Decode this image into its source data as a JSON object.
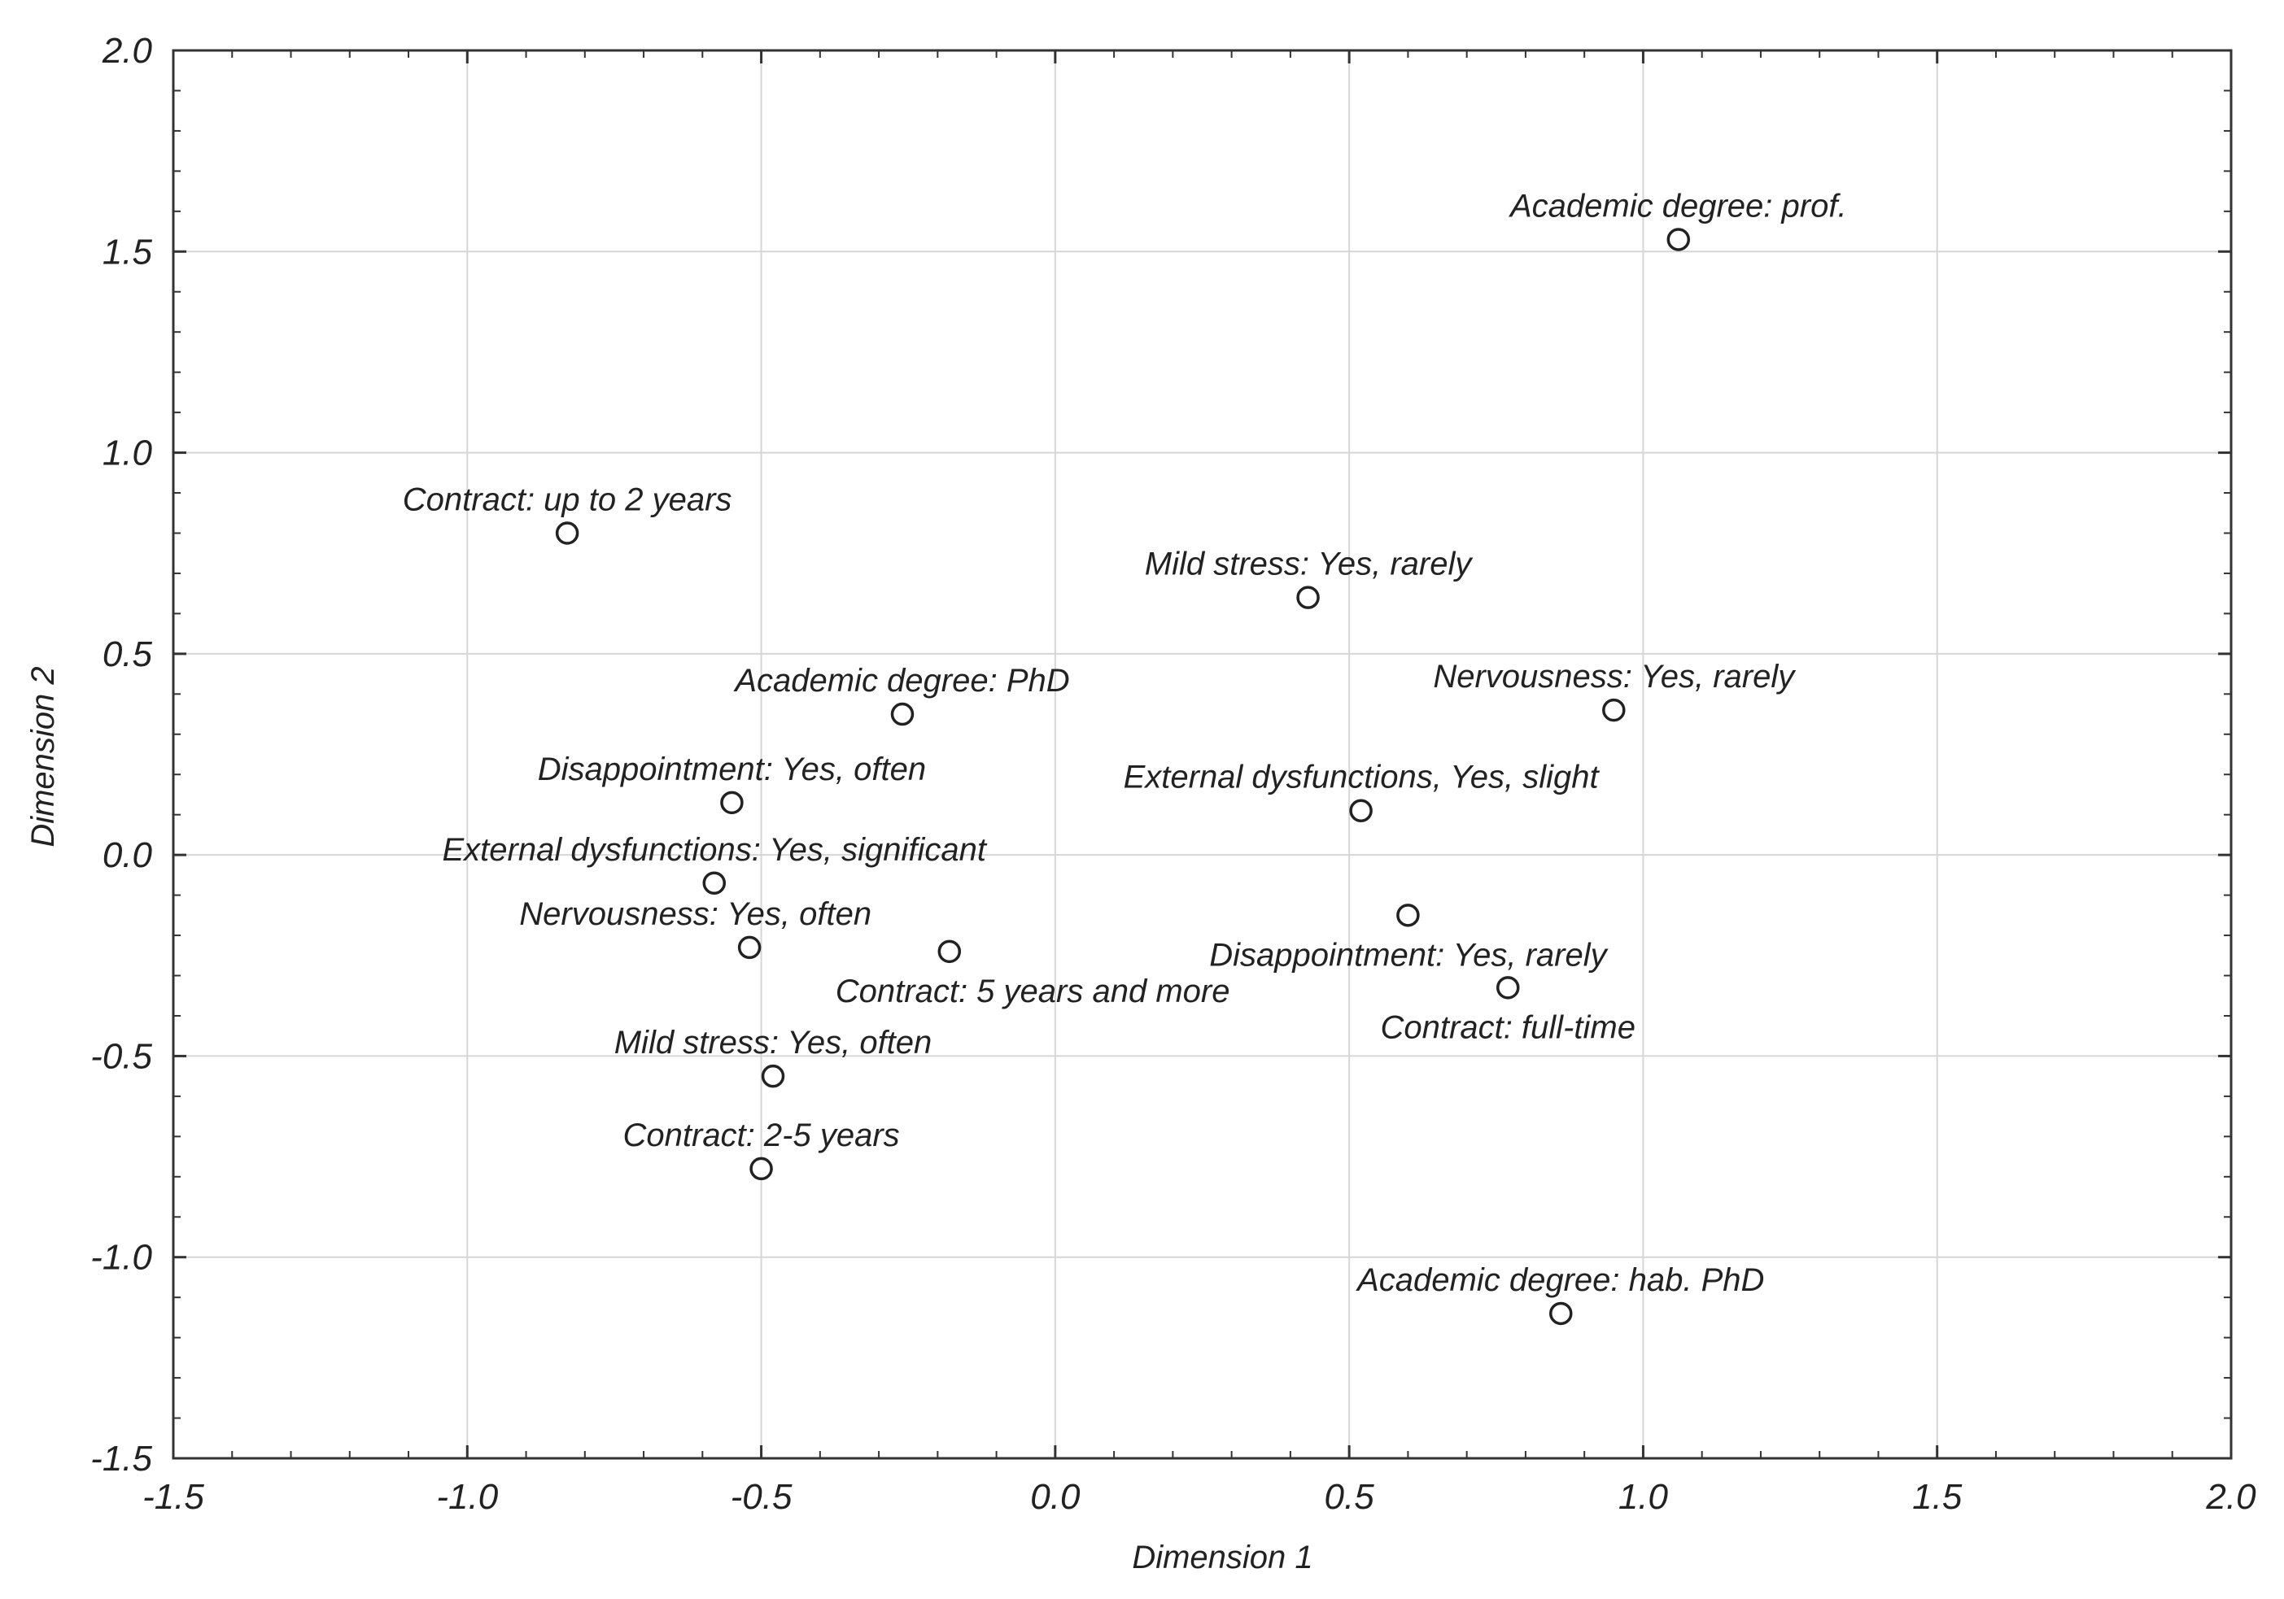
{
  "chart_data": {
    "type": "scatter",
    "title": "",
    "xlabel": "Dimension 1",
    "ylabel": "Dimension 2",
    "xlim": [
      -1.5,
      2.0
    ],
    "ylim": [
      -1.5,
      2.0
    ],
    "xticks": [
      "-1.5",
      "-1.0",
      "-0.5",
      "0.0",
      "0.5",
      "1.0",
      "1.5",
      "2.0"
    ],
    "yticks": [
      "2.0",
      "1.5",
      "1.0",
      "0.5",
      "0.0",
      "-0.5",
      "-1.0",
      "-1.5"
    ],
    "grid": true,
    "points": [
      {
        "label": "Academic degree: prof.",
        "x": 1.06,
        "y": 1.53,
        "label_anchor": "middle",
        "label_pos": "above"
      },
      {
        "label": "Contract: up to 2 years",
        "x": -0.83,
        "y": 0.8,
        "label_anchor": "middle",
        "label_pos": "above"
      },
      {
        "label": "Mild stress: Yes, rarely",
        "x": 0.43,
        "y": 0.64,
        "label_anchor": "middle",
        "label_pos": "above"
      },
      {
        "label": "Academic degree: PhD",
        "x": -0.26,
        "y": 0.35,
        "label_anchor": "middle",
        "label_pos": "above"
      },
      {
        "label": "Nervousness: Yes, rarely",
        "x": 0.95,
        "y": 0.36,
        "label_anchor": "middle",
        "label_pos": "above"
      },
      {
        "label": "Disappointment: Yes, often",
        "x": -0.55,
        "y": 0.13,
        "label_anchor": "middle",
        "label_pos": "above"
      },
      {
        "label": "External dysfunctions, Yes, slight",
        "x": 0.52,
        "y": 0.11,
        "label_anchor": "middle",
        "label_pos": "above"
      },
      {
        "label": "External dysfunctions: Yes, significant",
        "x": -0.58,
        "y": -0.07,
        "label_anchor": "middle",
        "label_pos": "above"
      },
      {
        "label": "Disappointment: Yes, rarely",
        "x": 0.6,
        "y": -0.15,
        "label_anchor": "middle",
        "label_pos": "below"
      },
      {
        "label": "Nervousness: Yes, often",
        "x": -0.52,
        "y": -0.23,
        "label_anchor": "end",
        "label_pos": "above"
      },
      {
        "label": "Contract: 5 years and more",
        "x": -0.18,
        "y": -0.24,
        "label_anchor": "start",
        "label_pos": "below"
      },
      {
        "label": "Contract: full-time",
        "x": 0.77,
        "y": -0.33,
        "label_anchor": "middle",
        "label_pos": "below"
      },
      {
        "label": "Mild stress: Yes, often",
        "x": -0.48,
        "y": -0.55,
        "label_anchor": "middle",
        "label_pos": "above"
      },
      {
        "label": "Contract: 2-5 years",
        "x": -0.5,
        "y": -0.78,
        "label_anchor": "middle",
        "label_pos": "above"
      },
      {
        "label": "Academic degree: hab. PhD",
        "x": 0.86,
        "y": -1.14,
        "label_anchor": "middle",
        "label_pos": "above"
      }
    ]
  }
}
